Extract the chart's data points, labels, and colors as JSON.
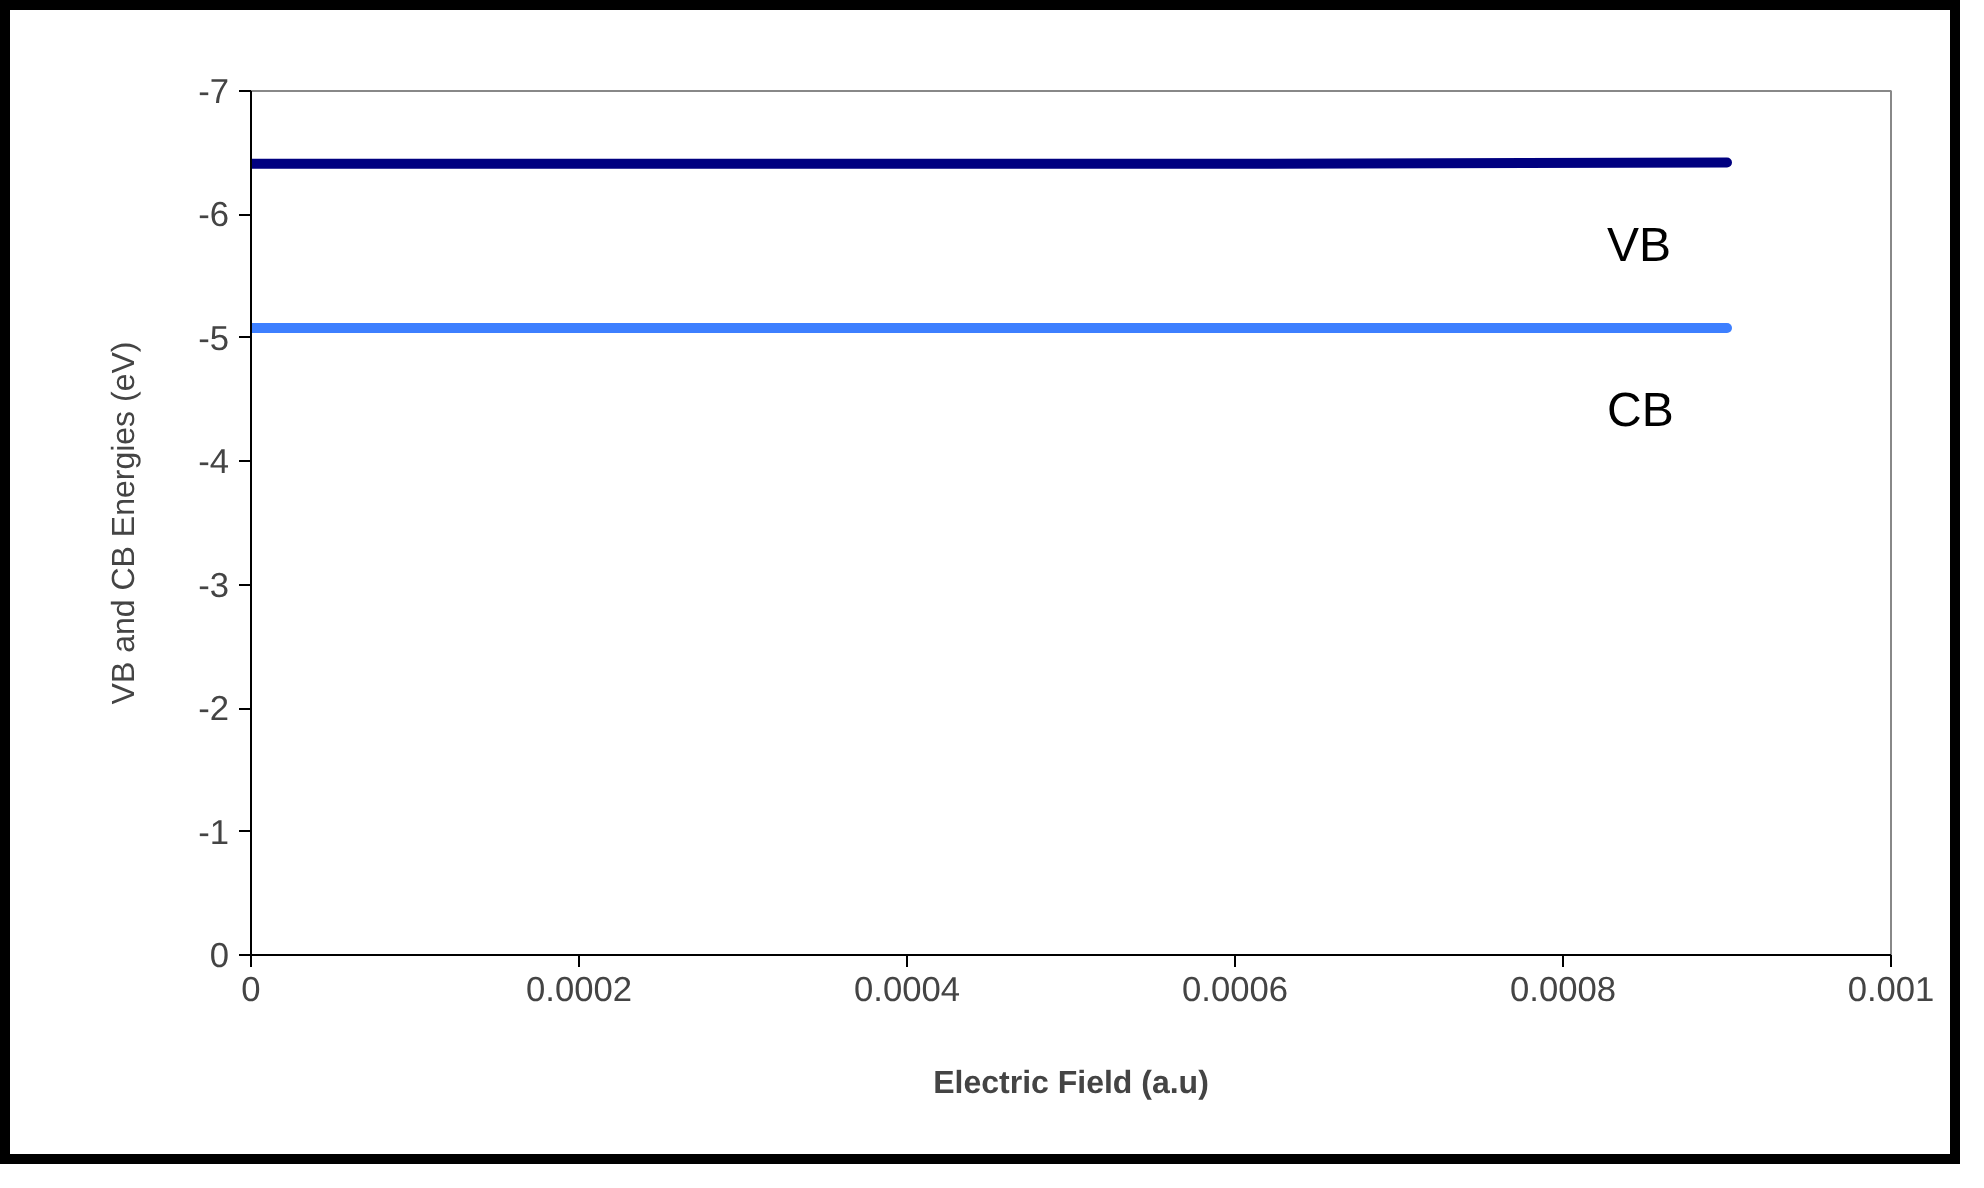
{
  "chart_data": {
    "type": "line",
    "xlabel": "Electric Field (a.u)",
    "ylabel": "VB and CB Energies (eV)",
    "x": [
      0,
      0.0003,
      0.0006,
      0.0009
    ],
    "series": [
      {
        "name": "VB",
        "color": "#000080",
        "values": [
          -6.41,
          -6.41,
          -6.41,
          -6.42
        ]
      },
      {
        "name": "CB",
        "color": "#3d7fff",
        "values": [
          -5.08,
          -5.08,
          -5.08,
          -5.08
        ]
      }
    ],
    "xlim": [
      0,
      0.001
    ],
    "xticks": [
      0,
      0.0002,
      0.0004,
      0.0006,
      0.0008,
      0.001
    ],
    "ylim": [
      0,
      -7
    ],
    "yticks": [
      0,
      -1,
      -2,
      -3,
      -4,
      -5,
      -6,
      -7
    ],
    "grid": false,
    "marker": "none",
    "line_style": "solid"
  }
}
